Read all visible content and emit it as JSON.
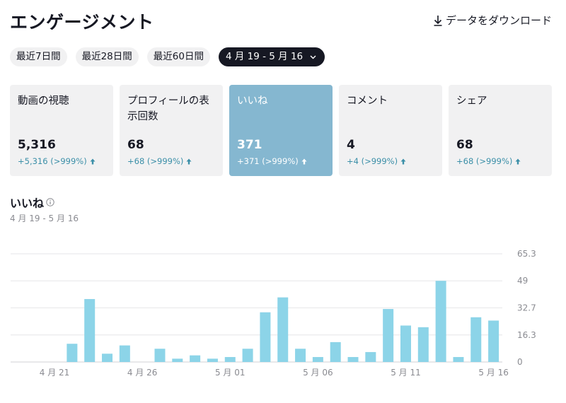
{
  "header": {
    "title": "エンゲージメント",
    "download_label": "データをダウンロード"
  },
  "range_pills": [
    {
      "label": "最近7日間"
    },
    {
      "label": "最近28日間"
    },
    {
      "label": "最近60日間"
    },
    {
      "label": "4 月 19 - 5 月 16"
    }
  ],
  "cards": [
    {
      "label": "動画の視聴",
      "value": "5,316",
      "delta": "+5,316 (>999%)"
    },
    {
      "label": "プロフィールの表示回数",
      "value": "68",
      "delta": "+68 (>999%)"
    },
    {
      "label": "いいね",
      "value": "371",
      "delta": "+371 (>999%)"
    },
    {
      "label": "コメント",
      "value": "4",
      "delta": "+4 (>999%)"
    },
    {
      "label": "シェア",
      "value": "68",
      "delta": "+68 (>999%)"
    }
  ],
  "section": {
    "title": "いいね",
    "subtitle": "4 月 19 - 5 月 16"
  },
  "colors": {
    "bar": "#8cd4e8",
    "active_card": "#85b7d0",
    "delta": "#3b8fa8",
    "grid": "#e6e6e8"
  },
  "chart_data": {
    "type": "bar",
    "categories": [
      "4 月 19",
      "4 月 20",
      "4 月 21",
      "4 月 22",
      "4 月 23",
      "4 月 24",
      "4 月 25",
      "4 月 26",
      "4 月 27",
      "4 月 28",
      "4 月 29",
      "4 月 30",
      "5 月 01",
      "5 月 02",
      "5 月 03",
      "5 月 04",
      "5 月 05",
      "5 月 06",
      "5 月 07",
      "5 月 08",
      "5 月 09",
      "5 月 10",
      "5 月 11",
      "5 月 12",
      "5 月 13",
      "5 月 14",
      "5 月 15",
      "5 月 16"
    ],
    "values": [
      0,
      0,
      0,
      11,
      38,
      5,
      10,
      0,
      8,
      2,
      4,
      2,
      3,
      8,
      30,
      39,
      8,
      3,
      12,
      3,
      6,
      32,
      22,
      21,
      49,
      3,
      27,
      25
    ],
    "x_tick_labels": [
      "4 月 21",
      "4 月 26",
      "5 月 01",
      "5 月 06",
      "5 月 11",
      "5 月 16"
    ],
    "y_ticks": [
      "0",
      "16.3",
      "32.7",
      "49",
      "65.3"
    ],
    "ylim": [
      0,
      65.3
    ],
    "grid": true
  }
}
